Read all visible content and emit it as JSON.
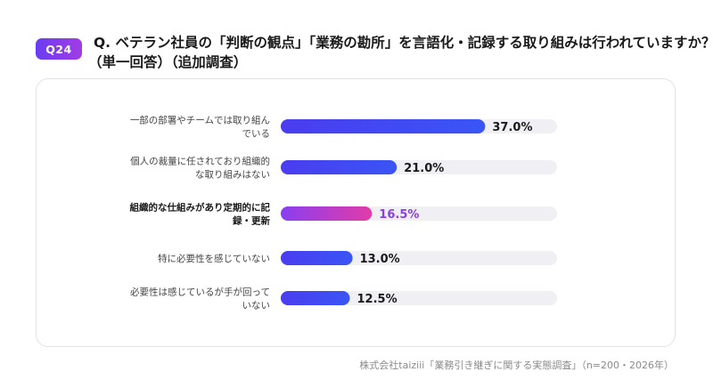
{
  "badge": "Q24",
  "question": {
    "line1": "Q. ベテラン社員の「判断の観点」「業務の勘所」を言語化・記録する取り組みは行われていますか？",
    "line2": "（単一回答）（追加調査）"
  },
  "source": "株式会社taiziii「業務引き継ぎに関する実態調査」（n=200・2026年）",
  "colors": {
    "bar_blue_start": "#4a3df0",
    "bar_blue_end": "#3a55f5",
    "bar_highlight_start": "#8a3ef0",
    "bar_highlight_end": "#e23ca8",
    "track": "#efeff4",
    "highlight_text": "#8a3ef0"
  },
  "chart_data": {
    "type": "bar",
    "orientation": "horizontal",
    "unit": "%",
    "xlim": [
      0,
      50
    ],
    "categories": [
      [
        "一部の部署やチームでは取り組ん",
        "でいる"
      ],
      [
        "個人の裁量に任されており組織的",
        "な取り組みはない"
      ],
      [
        "組織的な仕組みがあり定期的に記",
        "録・更新"
      ],
      [
        "特に必要性を感じていない"
      ],
      [
        "必要性は感じているが手が回って",
        "いない"
      ]
    ],
    "values": [
      37.0,
      21.0,
      16.5,
      13.0,
      12.5
    ],
    "value_labels": [
      "37.0%",
      "21.0%",
      "16.5%",
      "13.0%",
      "12.5%"
    ],
    "highlight_index": 2
  }
}
